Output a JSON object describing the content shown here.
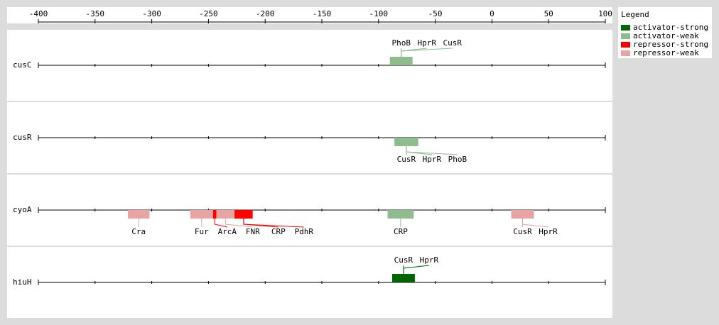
{
  "axis": {
    "ticks": [
      -400,
      -350,
      -300,
      -250,
      -200,
      -150,
      -100,
      -50,
      0,
      50,
      100
    ]
  },
  "legend": {
    "title": "Legend",
    "items": [
      {
        "label": "activator-strong",
        "color": "#006400"
      },
      {
        "label": "activator-weak",
        "color": "#8fbc8f"
      },
      {
        "label": "repressor-strong",
        "color": "#ff0000"
      },
      {
        "label": "repressor-weak",
        "color": "#e8a3a3"
      }
    ]
  },
  "genes": [
    {
      "name": "cusC",
      "labels": "above",
      "sites": [
        {
          "start": -90,
          "end": -70,
          "kind": 1,
          "factors": [
            "PhoB",
            "HprR",
            "CusR"
          ]
        }
      ]
    },
    {
      "name": "cusR",
      "labels": "below",
      "sites": [
        {
          "start": -86,
          "end": -65,
          "kind": 1,
          "factors": [
            "CusR",
            "HprR",
            "PhoB"
          ]
        }
      ]
    },
    {
      "name": "cyoA",
      "labels": "below",
      "sites": [
        {
          "start": -321,
          "end": -302,
          "kind": 3,
          "factors": [
            "Cra"
          ]
        },
        {
          "start": -266,
          "end": -246,
          "kind": 3,
          "factors": [
            "Fur"
          ]
        },
        {
          "start": -246,
          "end": -243,
          "kind": 2,
          "factors": [
            "ArcA"
          ]
        },
        {
          "start": -243,
          "end": -227,
          "kind": 3,
          "factors": [
            "FNR"
          ]
        },
        {
          "start": -227,
          "end": -211,
          "kind": 2,
          "factors": [
            "CRP",
            "PdhR"
          ]
        },
        {
          "start": -92,
          "end": -69,
          "kind": 1,
          "factors": [
            "CRP"
          ]
        },
        {
          "start": 17,
          "end": 37,
          "kind": 3,
          "factors": [
            "CusR",
            "HprR"
          ]
        }
      ]
    },
    {
      "name": "hiuH",
      "labels": "above",
      "sites": [
        {
          "start": -88,
          "end": -68,
          "kind": 0,
          "factors": [
            "CusR",
            "HprR"
          ]
        }
      ]
    }
  ]
}
